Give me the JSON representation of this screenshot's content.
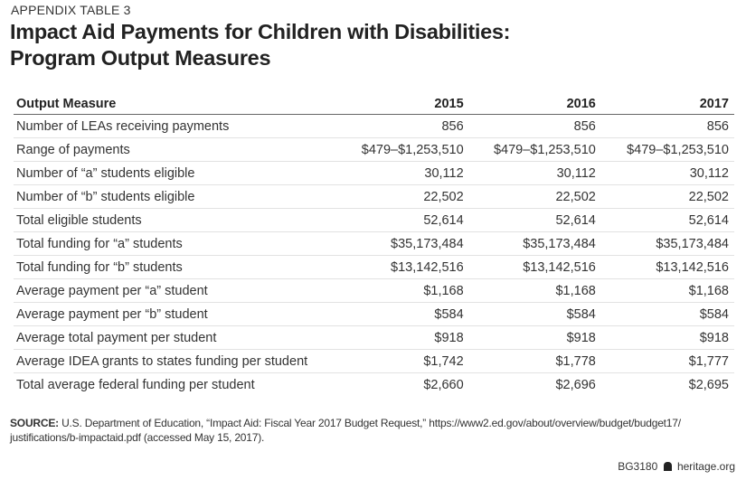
{
  "eyebrow": "APPENDIX TABLE 3",
  "title_line1": "Impact Aid Payments for Children with Disabilities:",
  "title_line2": "Program Output Measures",
  "table": {
    "headers": [
      "Output Measure",
      "2015",
      "2016",
      "2017"
    ],
    "rows": [
      [
        "Number of LEAs receiving payments",
        "856",
        "856",
        "856"
      ],
      [
        "Range of payments",
        "$479–$1,253,510",
        "$479–$1,253,510",
        "$479–$1,253,510"
      ],
      [
        "Number of “a” students eligible",
        "30,112",
        "30,112",
        "30,112"
      ],
      [
        "Number of “b” students eligible",
        "22,502",
        "22,502",
        "22,502"
      ],
      [
        "Total eligible students",
        "52,614",
        "52,614",
        "52,614"
      ],
      [
        "Total funding for “a” students",
        "$35,173,484",
        "$35,173,484",
        "$35,173,484"
      ],
      [
        "Total funding for “b” students",
        "$13,142,516",
        "$13,142,516",
        "$13,142,516"
      ],
      [
        "Average payment per “a” student",
        "$1,168",
        "$1,168",
        "$1,168"
      ],
      [
        "Average payment per “b” student",
        "$584",
        "$584",
        "$584"
      ],
      [
        "Average total payment per student",
        "$918",
        "$918",
        "$918"
      ],
      [
        "Average IDEA grants to states funding per student",
        "$1,742",
        "$1,778",
        "$1,777"
      ],
      [
        "Total average federal funding per student",
        "$2,660",
        "$2,696",
        "$2,695"
      ]
    ]
  },
  "source": {
    "label": "SOURCE:",
    "text": " U.S. Department of Education, “Impact Aid: Fiscal Year 2017 Budget Request,” https://www2.ed.gov/about/overview/budget/budget17/ justifications/b-impactaid.pdf (accessed May 15, 2017)."
  },
  "footer": {
    "code": "BG3180",
    "icon": "liberty-bell-icon",
    "site": "heritage.org"
  }
}
